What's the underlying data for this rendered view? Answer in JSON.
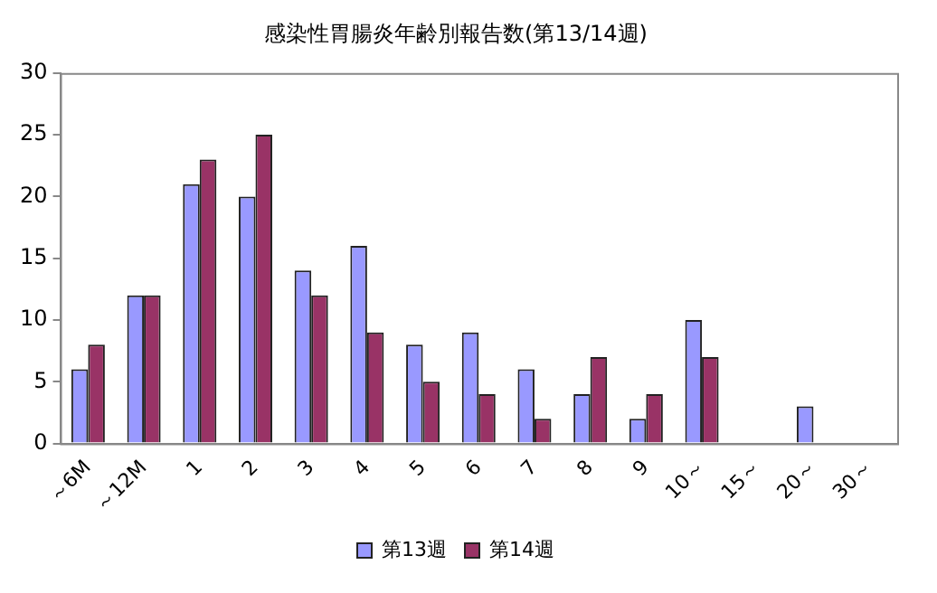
{
  "chart_data": {
    "type": "bar",
    "title": "感染性胃腸炎年齢別報告数(第13/14週)",
    "categories": [
      "～6M",
      "～12M",
      "1",
      "2",
      "3",
      "4",
      "5",
      "6",
      "7",
      "8",
      "9",
      "10～",
      "15～",
      "20～",
      "30～"
    ],
    "series": [
      {
        "name": "第13週",
        "color": "#9999ff",
        "values": [
          6,
          12,
          21,
          20,
          14,
          16,
          8,
          9,
          6,
          4,
          2,
          10,
          0,
          3,
          0
        ]
      },
      {
        "name": "第14週",
        "color": "#993366",
        "values": [
          8,
          12,
          23,
          25,
          12,
          9,
          5,
          4,
          2,
          7,
          4,
          7,
          0,
          0,
          0
        ]
      }
    ],
    "ylim": [
      0,
      30
    ],
    "yticks": [
      0,
      5,
      10,
      15,
      20,
      25,
      30
    ],
    "grid": false,
    "legend": "bottom"
  }
}
